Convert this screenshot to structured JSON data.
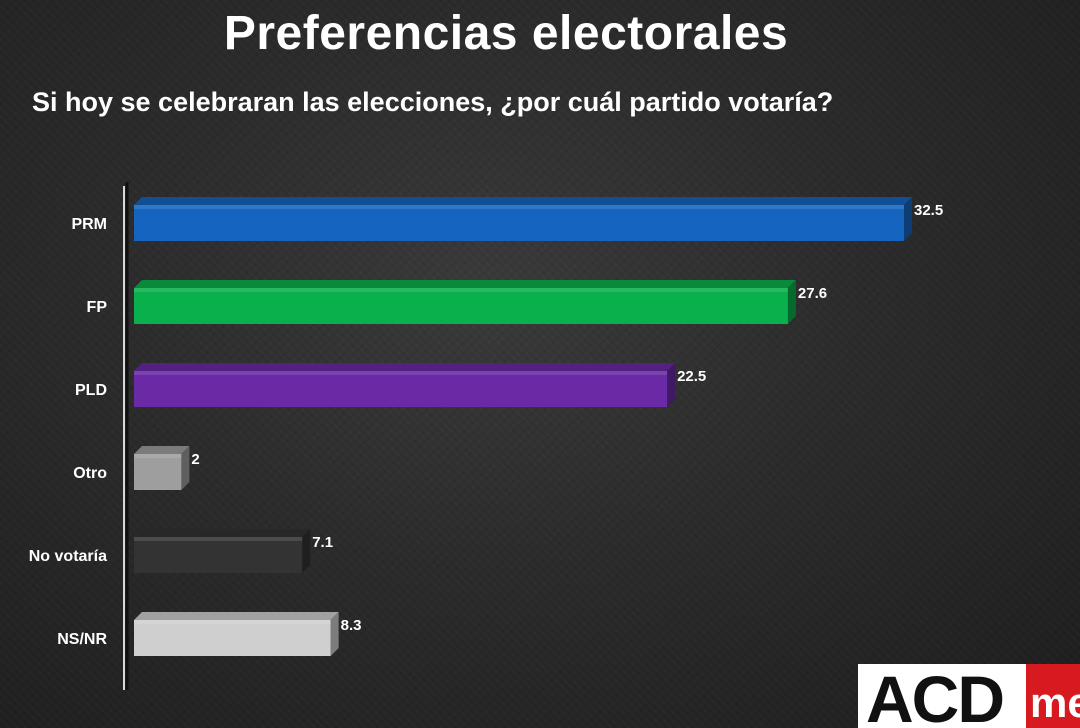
{
  "header": {
    "title": "Preferencias electorales",
    "subtitle": "Si hoy se celebraran las elecciones, ¿por cuál partido votaría?"
  },
  "logo": {
    "main": "ACD",
    "suffix": "me"
  },
  "chart_data": {
    "type": "bar",
    "orientation": "horizontal",
    "title": "Preferencias electorales",
    "subtitle": "Si hoy se celebraran las elecciones, ¿por cuál partido votaría?",
    "categories": [
      "PRM",
      "FP",
      "PLD",
      "Otro",
      "No votaría",
      "NS/NR"
    ],
    "values": [
      32.5,
      27.6,
      22.5,
      2,
      7.1,
      8.3
    ],
    "value_labels": [
      "32.5",
      "27.6",
      "22.5",
      "2",
      "7.1",
      "8.3"
    ],
    "colors": [
      "#1565c0",
      "#0ab04c",
      "#6a2aa6",
      "#9e9e9e",
      "#333333",
      "#cfcfcf"
    ],
    "xlim": [
      0,
      32.5
    ],
    "grid": false,
    "legend": "none"
  }
}
